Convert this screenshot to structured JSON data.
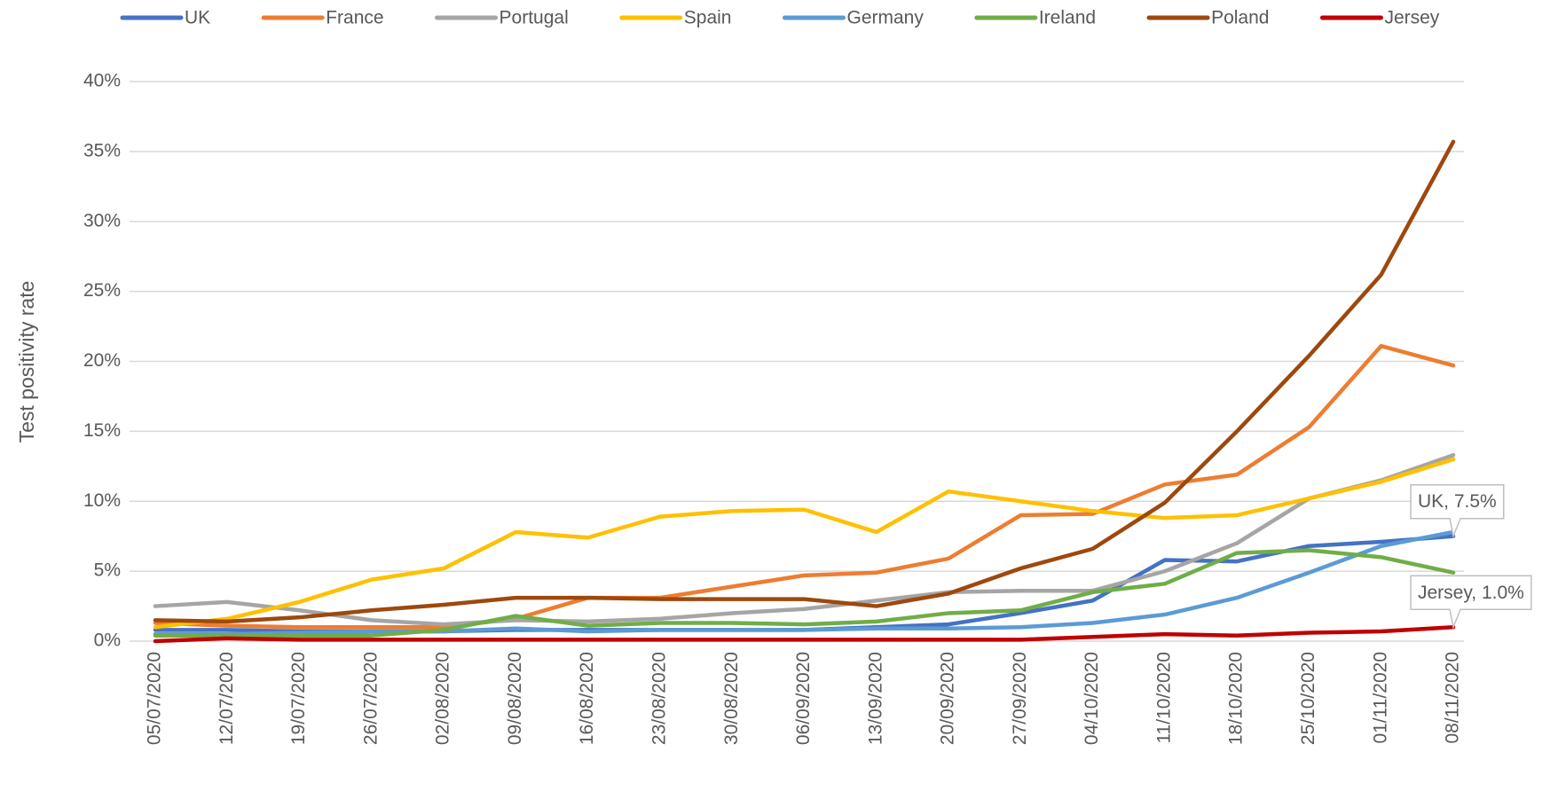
{
  "chart_data": {
    "type": "line",
    "y_label": "Test positivity rate",
    "categories": [
      "05/07/2020",
      "12/07/2020",
      "19/07/2020",
      "26/07/2020",
      "02/08/2020",
      "09/08/2020",
      "16/08/2020",
      "23/08/2020",
      "30/08/2020",
      "06/09/2020",
      "13/09/2020",
      "20/09/2020",
      "27/09/2020",
      "04/10/2020",
      "11/10/2020",
      "18/10/2020",
      "25/10/2020",
      "01/11/2020",
      "08/11/2020"
    ],
    "series": [
      {
        "name": "UK",
        "color": "#4472c4",
        "values": [
          0.8,
          0.8,
          0.7,
          0.7,
          0.7,
          0.8,
          0.8,
          0.8,
          0.8,
          0.8,
          1.0,
          1.2,
          2.0,
          2.9,
          5.8,
          5.7,
          6.8,
          7.1,
          7.5
        ]
      },
      {
        "name": "France",
        "color": "#ed7d31",
        "values": [
          1.3,
          1.1,
          1.0,
          1.0,
          1.0,
          1.6,
          3.1,
          3.1,
          3.9,
          4.7,
          4.9,
          5.9,
          9.0,
          9.1,
          11.2,
          11.9,
          15.3,
          21.1,
          19.7
        ]
      },
      {
        "name": "Portugal",
        "color": "#a5a5a5",
        "values": [
          2.5,
          2.8,
          2.2,
          1.5,
          1.2,
          1.5,
          1.4,
          1.6,
          2.0,
          2.3,
          2.9,
          3.5,
          3.6,
          3.6,
          5.0,
          7.0,
          10.2,
          11.5,
          13.3
        ]
      },
      {
        "name": "Spain",
        "color": "#ffc000",
        "values": [
          1.0,
          1.6,
          2.8,
          4.4,
          5.2,
          7.8,
          7.4,
          8.9,
          9.3,
          9.4,
          7.8,
          10.7,
          10.0,
          9.3,
          8.8,
          9.0,
          10.2,
          11.4,
          13.0
        ]
      },
      {
        "name": "Germany",
        "color": "#5b9bd5",
        "values": [
          0.5,
          0.5,
          0.6,
          0.7,
          0.7,
          0.9,
          0.7,
          0.8,
          0.8,
          0.8,
          0.9,
          0.9,
          1.0,
          1.3,
          1.9,
          3.1,
          4.9,
          6.8,
          7.8
        ]
      },
      {
        "name": "Ireland",
        "color": "#70ad47",
        "values": [
          0.4,
          0.4,
          0.4,
          0.4,
          0.8,
          1.8,
          1.1,
          1.3,
          1.3,
          1.2,
          1.4,
          2.0,
          2.2,
          3.5,
          4.1,
          6.3,
          6.5,
          6.0,
          4.9
        ]
      },
      {
        "name": "Poland",
        "color": "#9e480e",
        "values": [
          1.5,
          1.4,
          1.7,
          2.2,
          2.6,
          3.1,
          3.1,
          3.0,
          3.0,
          3.0,
          2.5,
          3.4,
          5.2,
          6.6,
          9.9,
          15.0,
          20.4,
          26.2,
          35.7
        ]
      },
      {
        "name": "Jersey",
        "color": "#c00000",
        "values": [
          0.0,
          0.2,
          0.1,
          0.1,
          0.1,
          0.1,
          0.1,
          0.1,
          0.1,
          0.1,
          0.1,
          0.1,
          0.1,
          0.3,
          0.5,
          0.4,
          0.6,
          0.7,
          1.0
        ]
      }
    ],
    "annotations": [
      "UK, 7.5%",
      "Jersey, 1.0%"
    ],
    "ylim": [
      0,
      40
    ],
    "yticks": [
      {
        "value": 0,
        "label": "0%"
      },
      {
        "value": 5,
        "label": "5%"
      },
      {
        "value": 10,
        "label": "10%"
      },
      {
        "value": 15,
        "label": "15%"
      },
      {
        "value": 20,
        "label": "20%"
      },
      {
        "value": 25,
        "label": "25%"
      },
      {
        "value": 30,
        "label": "30%"
      },
      {
        "value": 35,
        "label": "35%"
      },
      {
        "value": 40,
        "label": "40%"
      }
    ],
    "grid": true,
    "legend": "top"
  }
}
